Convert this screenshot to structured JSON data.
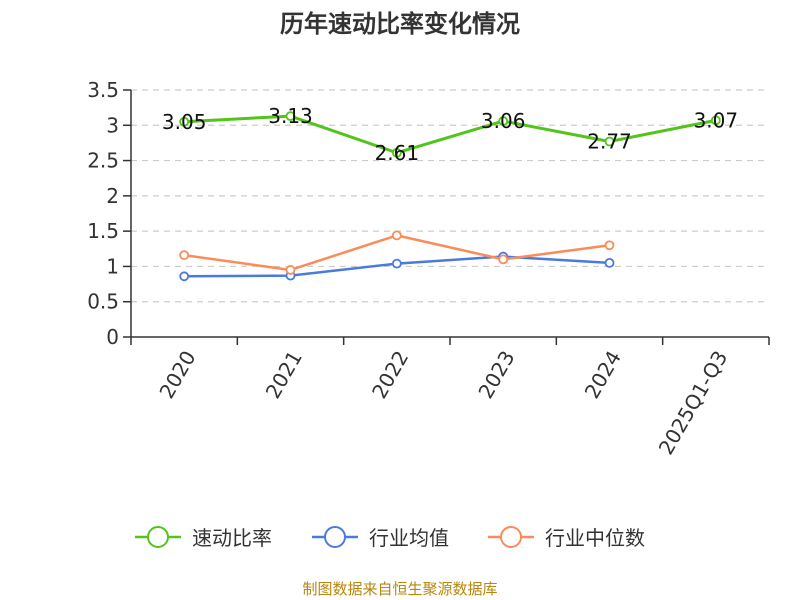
{
  "chart_data": {
    "type": "line",
    "title": "历年速动比率变化情况",
    "categories": [
      "2020",
      "2021",
      "2022",
      "2023",
      "2024",
      "2025Q1-Q3"
    ],
    "ylim": [
      0,
      3.5
    ],
    "yticks": [
      "0",
      "0.5",
      "1",
      "1.5",
      "2",
      "2.5",
      "3",
      "3.5"
    ],
    "grid": true,
    "legend_position": "bottom",
    "series": [
      {
        "name": "速动比率",
        "color": "#52c41a",
        "values": [
          3.05,
          3.13,
          2.61,
          3.06,
          2.77,
          3.07
        ],
        "labels": [
          "3.05",
          "3.13",
          "2.61",
          "3.06",
          "2.77",
          "3.07"
        ]
      },
      {
        "name": "行业均值",
        "color": "#4a7bdc",
        "values": [
          0.86,
          0.87,
          1.04,
          1.14,
          1.05,
          null
        ]
      },
      {
        "name": "行业中位数",
        "color": "#fa8c5a",
        "values": [
          1.16,
          0.95,
          1.44,
          1.1,
          1.3,
          null
        ]
      }
    ],
    "source": "制图数据来自恒生聚源数据库"
  }
}
